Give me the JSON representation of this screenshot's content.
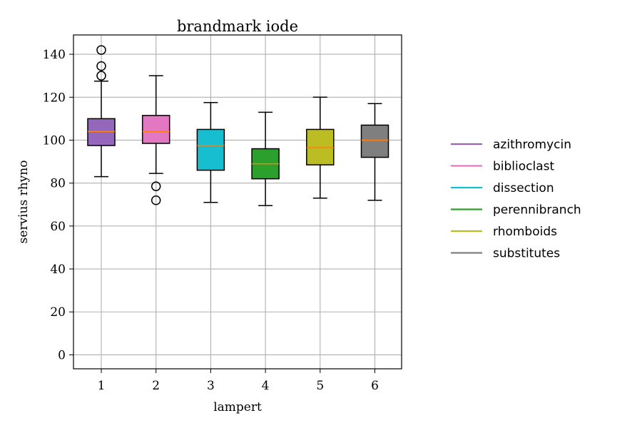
{
  "chart_data": {
    "type": "boxplot",
    "title": "brandmark iode",
    "xlabel": "lampert",
    "ylabel": "servius rhyno",
    "ylim": [
      -6.5,
      149
    ],
    "yticks": [
      0,
      20,
      40,
      60,
      80,
      100,
      120,
      140
    ],
    "categories": [
      "1",
      "2",
      "3",
      "4",
      "5",
      "6"
    ],
    "grid": true,
    "legend_position": "right",
    "series": [
      {
        "name": "azithromycin",
        "color": "#9467bd",
        "whisker_low": 83,
        "q1": 97.5,
        "median": 104,
        "q3": 110,
        "whisker_high": 127.5,
        "outliers": [
          130,
          134.5,
          142
        ]
      },
      {
        "name": "biblioclast",
        "color": "#e377c2",
        "whisker_low": 84.5,
        "q1": 98.5,
        "median": 104,
        "q3": 111.5,
        "whisker_high": 130,
        "outliers": [
          72,
          78.5
        ]
      },
      {
        "name": "dissection",
        "color": "#17becf",
        "whisker_low": 71,
        "q1": 86,
        "median": 97.5,
        "q3": 105,
        "whisker_high": 117.5,
        "outliers": []
      },
      {
        "name": "perennibranch",
        "color": "#2ca02c",
        "whisker_low": 69.5,
        "q1": 82,
        "median": 89,
        "q3": 96,
        "whisker_high": 113,
        "outliers": []
      },
      {
        "name": "rhomboids",
        "color": "#bcbd22",
        "whisker_low": 73,
        "q1": 88.5,
        "median": 96.5,
        "q3": 105,
        "whisker_high": 120,
        "outliers": []
      },
      {
        "name": "substitutes",
        "color": "#7f7f7f",
        "whisker_low": 72,
        "q1": 92,
        "median": 100,
        "q3": 107,
        "whisker_high": 117,
        "outliers": []
      }
    ],
    "median_color": "#ff7f0e"
  }
}
